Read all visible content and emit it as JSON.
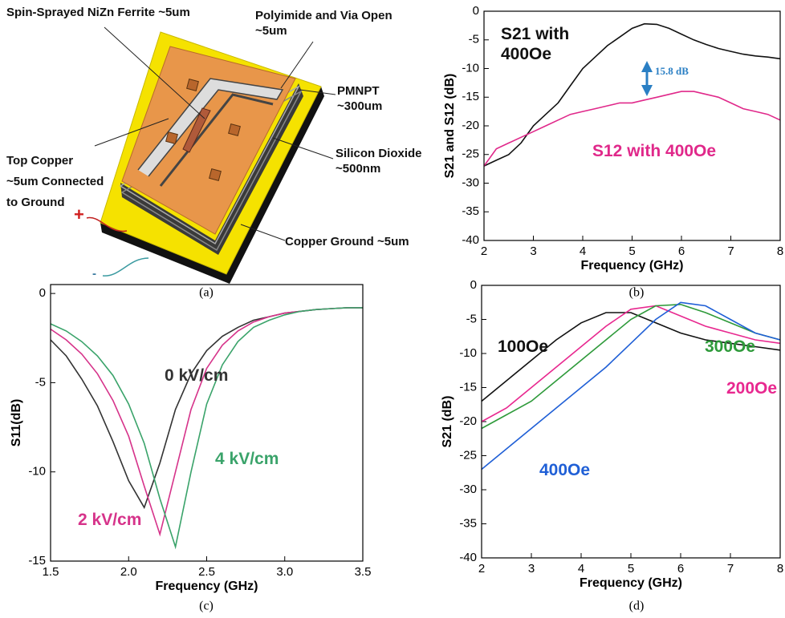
{
  "diagram": {
    "labels": [
      "Spin-Sprayed NiZn Ferrite ~5um",
      "Polyimide and Via Open ~5um",
      "PMNPT ~300um",
      "Silicon Dioxide ~500nm",
      "Top Copper ~5um Connected to Ground",
      "Copper Ground ~5um",
      "+",
      "-"
    ],
    "caption": "(a)"
  },
  "chart_data": [
    {
      "type": "line",
      "caption": "(b)",
      "xlabel": "Frequency (GHz)",
      "ylabel": "S21 and S12 (dB)",
      "annotation": "15.8 dB",
      "x": [
        2,
        2.25,
        2.5,
        2.75,
        3,
        3.25,
        3.5,
        3.75,
        4,
        4.25,
        4.5,
        4.75,
        5,
        5.25,
        5.5,
        5.75,
        6,
        6.25,
        6.5,
        6.75,
        7,
        7.25,
        7.5,
        7.75,
        8
      ],
      "xlim": [
        2,
        8
      ],
      "xticks": [
        2,
        3,
        4,
        5,
        6,
        7,
        8
      ],
      "ylim": [
        -40,
        0
      ],
      "yticks": [
        -40,
        -35,
        -30,
        -25,
        -20,
        -15,
        -10,
        -5,
        0
      ],
      "series": [
        {
          "name": "S21 with 400Oe",
          "color": "#111111",
          "values": [
            -27,
            -26,
            -25,
            -23,
            -20,
            -18,
            -16,
            -13,
            -10,
            -8,
            -6,
            -4.5,
            -3,
            -2.2,
            -2.3,
            -3,
            -4,
            -5,
            -5.8,
            -6.5,
            -7,
            -7.5,
            -7.8,
            -8,
            -8.3
          ]
        },
        {
          "name": "S12 with 400Oe",
          "color": "#e0288a",
          "values": [
            -27,
            -24,
            -23,
            -22,
            -21,
            -20,
            -19,
            -18,
            -17.5,
            -17,
            -16.5,
            -16,
            -16,
            -15.5,
            -15,
            -14.5,
            -14,
            -14,
            -14.5,
            -15,
            -16,
            -17,
            -17.5,
            -18,
            -19
          ]
        }
      ]
    },
    {
      "type": "line",
      "caption": "(c)",
      "xlabel": "Frequency (GHz)",
      "ylabel": "S11(dB)",
      "x": [
        1.5,
        1.6,
        1.7,
        1.8,
        1.9,
        2.0,
        2.1,
        2.2,
        2.3,
        2.4,
        2.5,
        2.6,
        2.7,
        2.8,
        2.9,
        3.0,
        3.1,
        3.2,
        3.3,
        3.4,
        3.5
      ],
      "xlim": [
        1.5,
        3.5
      ],
      "xticks": [
        1.5,
        {
          "value": 2,
          "label": "2.0"
        },
        2.5,
        {
          "value": 3,
          "label": "3.0"
        },
        3.5
      ],
      "ylim": [
        -15,
        0.5
      ],
      "yticks": [
        -15,
        -10,
        -5,
        0
      ],
      "series": [
        {
          "name": "0 kV/cm",
          "color": "#333333",
          "values": [
            -2.6,
            -3.5,
            -4.8,
            -6.3,
            -8.3,
            -10.5,
            -12.0,
            -9.5,
            -6.5,
            -4.5,
            -3.2,
            -2.4,
            -1.9,
            -1.5,
            -1.3,
            -1.1,
            -1.0,
            -0.9,
            -0.85,
            -0.8,
            -0.8
          ]
        },
        {
          "name": "2 kV/cm",
          "color": "#d6338a",
          "values": [
            -2.0,
            -2.6,
            -3.4,
            -4.5,
            -6.0,
            -8.0,
            -10.8,
            -13.5,
            -10.0,
            -6.5,
            -4.2,
            -2.9,
            -2.1,
            -1.6,
            -1.3,
            -1.1,
            -1.0,
            -0.9,
            -0.85,
            -0.8,
            -0.8
          ]
        },
        {
          "name": "4 kV/cm",
          "color": "#3aa36a",
          "values": [
            -1.7,
            -2.1,
            -2.7,
            -3.5,
            -4.6,
            -6.2,
            -8.4,
            -11.5,
            -14.2,
            -10.0,
            -6.2,
            -4.0,
            -2.7,
            -1.9,
            -1.5,
            -1.2,
            -1.0,
            -0.9,
            -0.85,
            -0.8,
            -0.8
          ]
        }
      ]
    },
    {
      "type": "line",
      "caption": "(d)",
      "xlabel": "Frequency (GHz)",
      "ylabel": "S21 (dB)",
      "x": [
        2,
        2.5,
        3,
        3.5,
        4,
        4.5,
        5,
        5.5,
        6,
        6.5,
        7,
        7.5,
        8
      ],
      "xlim": [
        2,
        8
      ],
      "xticks": [
        2,
        3,
        4,
        5,
        6,
        7,
        8
      ],
      "ylim": [
        -40,
        0
      ],
      "yticks": [
        -40,
        -35,
        -30,
        -25,
        -20,
        -15,
        -10,
        -5,
        0
      ],
      "series": [
        {
          "name": "100Oe",
          "color": "#111111",
          "values": [
            -17,
            -14,
            -11,
            -8,
            -5.5,
            -4,
            -4,
            -5.5,
            -7,
            -8,
            -8.5,
            -9,
            -9.5
          ]
        },
        {
          "name": "200Oe",
          "color": "#e8288f",
          "values": [
            -20,
            -18,
            -15,
            -12,
            -9,
            -6,
            -3.5,
            -3,
            -4.5,
            -6,
            -7,
            -8,
            -8.5
          ]
        },
        {
          "name": "300Oe",
          "color": "#2e9a3a",
          "values": [
            -21,
            -19,
            -17,
            -14,
            -11,
            -8,
            -5,
            -3,
            -2.8,
            -4,
            -5.5,
            -7,
            -8
          ]
        },
        {
          "name": "400Oe",
          "color": "#1f5fd6",
          "values": [
            -27,
            -24,
            -21,
            -18,
            -15,
            -12,
            -8.5,
            -5,
            -2.5,
            -3,
            -5,
            -7,
            -8
          ]
        }
      ]
    }
  ]
}
